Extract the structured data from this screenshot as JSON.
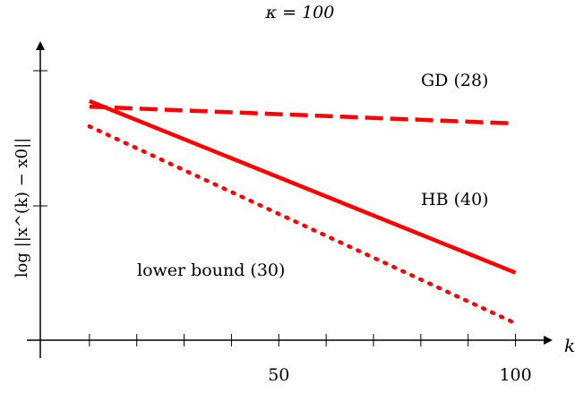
{
  "chart_data": {
    "type": "line",
    "title": "κ = 100",
    "xlabel": "k",
    "ylabel": "log ||x^(k) − x0||",
    "xlim": [
      0,
      105
    ],
    "ylim": [
      0,
      1
    ],
    "x_tick_labels": [
      "50",
      "100"
    ],
    "x_minor_ticks": [
      10,
      20,
      30,
      40,
      50,
      60,
      70,
      80,
      90,
      100
    ],
    "grid": false,
    "series": [
      {
        "name": "GD (28)",
        "style": "dashed",
        "color": "#ff0000",
        "x": [
          10,
          100
        ],
        "y": [
          0.83,
          0.77
        ]
      },
      {
        "name": "HB (40)",
        "style": "solid",
        "color": "#ff0000",
        "x": [
          10,
          100
        ],
        "y": [
          0.85,
          0.24
        ]
      },
      {
        "name": "lower bound (30)",
        "style": "dotted",
        "color": "#ff0000",
        "x": [
          10,
          100
        ],
        "y": [
          0.76,
          0.06
        ]
      }
    ]
  }
}
